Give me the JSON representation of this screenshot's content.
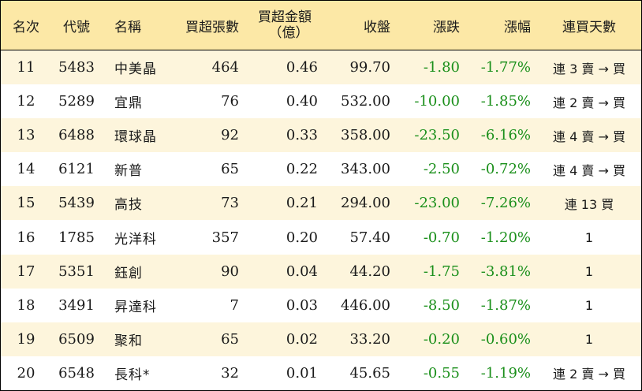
{
  "columns": {
    "rank": "名次",
    "code": "代號",
    "name": "名稱",
    "net_buy_qty": "買超張數",
    "net_buy_amount_line1": "買超金額",
    "net_buy_amount_line2": "（億）",
    "close": "收盤",
    "change": "漲跌",
    "change_pct": "漲幅",
    "streak": "連買天數"
  },
  "colors": {
    "header_bg": "#fce8a6",
    "odd_row_bg": "#fdf5dc",
    "negative": "#1a8f1a"
  },
  "rows": [
    {
      "rank": "11",
      "code": "5483",
      "name": "中美晶",
      "qty": "464",
      "amount": "0.46",
      "close": "99.70",
      "change": "-1.80",
      "pct": "-1.77%",
      "streak": "連 3 賣 → 買"
    },
    {
      "rank": "12",
      "code": "5289",
      "name": "宜鼎",
      "qty": "76",
      "amount": "0.40",
      "close": "532.00",
      "change": "-10.00",
      "pct": "-1.85%",
      "streak": "連 2 賣 → 買"
    },
    {
      "rank": "13",
      "code": "6488",
      "name": "環球晶",
      "qty": "92",
      "amount": "0.33",
      "close": "358.00",
      "change": "-23.50",
      "pct": "-6.16%",
      "streak": "連 4 賣 → 買"
    },
    {
      "rank": "14",
      "code": "6121",
      "name": "新普",
      "qty": "65",
      "amount": "0.22",
      "close": "343.00",
      "change": "-2.50",
      "pct": "-0.72%",
      "streak": "連 4 賣 → 買"
    },
    {
      "rank": "15",
      "code": "5439",
      "name": "高技",
      "qty": "73",
      "amount": "0.21",
      "close": "294.00",
      "change": "-23.00",
      "pct": "-7.26%",
      "streak": "連 13 買"
    },
    {
      "rank": "16",
      "code": "1785",
      "name": "光洋科",
      "qty": "357",
      "amount": "0.20",
      "close": "57.40",
      "change": "-0.70",
      "pct": "-1.20%",
      "streak": "1"
    },
    {
      "rank": "17",
      "code": "5351",
      "name": "鈺創",
      "qty": "90",
      "amount": "0.04",
      "close": "44.20",
      "change": "-1.75",
      "pct": "-3.81%",
      "streak": "1"
    },
    {
      "rank": "18",
      "code": "3491",
      "name": "昇達科",
      "qty": "7",
      "amount": "0.03",
      "close": "446.00",
      "change": "-8.50",
      "pct": "-1.87%",
      "streak": "1"
    },
    {
      "rank": "19",
      "code": "6509",
      "name": "聚和",
      "qty": "65",
      "amount": "0.02",
      "close": "33.20",
      "change": "-0.20",
      "pct": "-0.60%",
      "streak": "1"
    },
    {
      "rank": "20",
      "code": "6548",
      "name": "長科*",
      "qty": "32",
      "amount": "0.01",
      "close": "45.65",
      "change": "-0.55",
      "pct": "-1.19%",
      "streak": "連 2 賣 → 買"
    }
  ]
}
